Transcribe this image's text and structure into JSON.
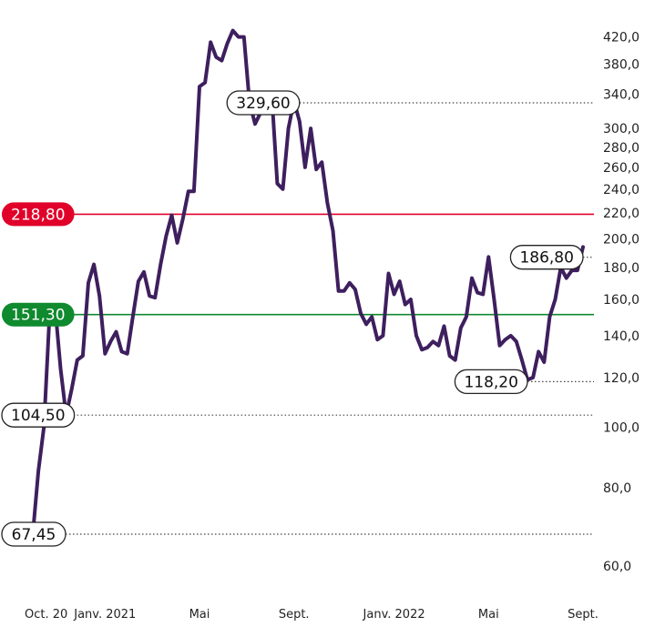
{
  "chart_data": {
    "type": "line",
    "scale": "log",
    "ylim": [
      55,
      450
    ],
    "grid": false,
    "line_color": "#3e1f5e",
    "y_ticks": [
      "60,0",
      "80,0",
      "100,0",
      "120,0",
      "140,0",
      "160,0",
      "180,0",
      "200,0",
      "220,0",
      "240,0",
      "260,0",
      "280,0",
      "300,0",
      "340,0",
      "380,0",
      "420,0"
    ],
    "x_ticks": [
      "Oct. 20",
      "Janv. 2021",
      "Mai",
      "Sept.",
      "Janv. 2022",
      "Mai",
      "Sept."
    ],
    "x_tick_positions": [
      0,
      13,
      30,
      47,
      65,
      82,
      99
    ],
    "series": [
      {
        "values": [
          67.45,
          85,
          100,
          150,
          156,
          124,
          104.5,
          115,
          128,
          130,
          170,
          182,
          162,
          131,
          137,
          142,
          132,
          131,
          150,
          171,
          177,
          162,
          161,
          182,
          202,
          218,
          197,
          215,
          238,
          238,
          350,
          355,
          412,
          390,
          385,
          410,
          430,
          420,
          420,
          330,
          305,
          318,
          322,
          340,
          245,
          240,
          300,
          332,
          308,
          260,
          300,
          258,
          265,
          228,
          206,
          165,
          165,
          170,
          166,
          152,
          146,
          150,
          138,
          140,
          176,
          163,
          171,
          157,
          160,
          140,
          133,
          134,
          137,
          135,
          145,
          130,
          128,
          144,
          150,
          173,
          164,
          163,
          187,
          160,
          135,
          138,
          140,
          137,
          128,
          119,
          120,
          132,
          127,
          150,
          160,
          180,
          173,
          178,
          178,
          194
        ]
      }
    ],
    "annotations": [
      {
        "label": "329,60",
        "value": 329.6,
        "style": "outline",
        "x": 48
      },
      {
        "label": "218,80",
        "value": 218.8,
        "style": "red",
        "x": 0
      },
      {
        "label": "186,80",
        "value": 186.8,
        "style": "outline",
        "x": 99
      },
      {
        "label": "151,30",
        "value": 151.3,
        "style": "green",
        "x": 0
      },
      {
        "label": "118,20",
        "value": 118.2,
        "style": "outline",
        "x": 89
      },
      {
        "label": "104,50",
        "value": 104.5,
        "style": "outline",
        "x": 6
      },
      {
        "label": "67,45",
        "value": 67.45,
        "style": "outline",
        "x": 0
      }
    ],
    "colors": {
      "red": "#e0002a",
      "green": "#0f8a2e",
      "dotted": "#444444",
      "axis_text": "#222222"
    }
  }
}
